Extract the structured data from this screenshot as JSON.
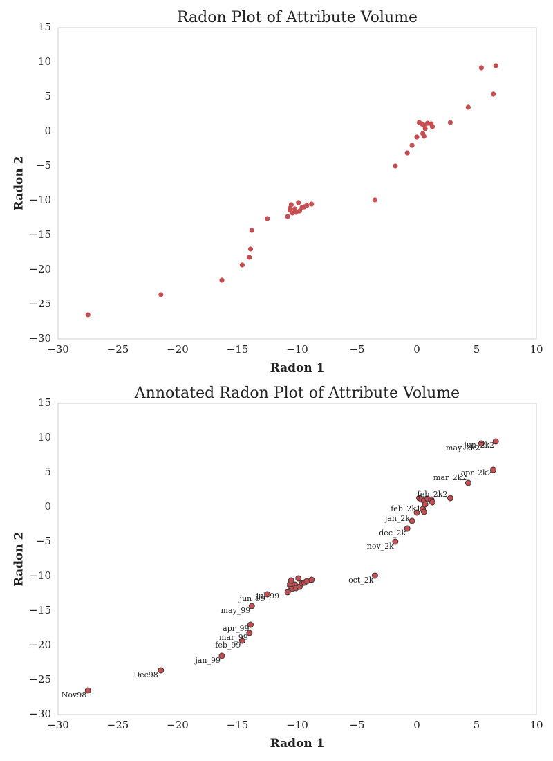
{
  "chart_data": [
    {
      "type": "scatter",
      "title": "Radon Plot of Attribute Volume",
      "xlabel": "Radon 1",
      "ylabel": "Radon 2",
      "xlim": [
        -30,
        10
      ],
      "ylim": [
        -30,
        15
      ],
      "xticks": [
        "−30",
        "−25",
        "−20",
        "−15",
        "−10",
        "−5",
        "0",
        "5",
        "10"
      ],
      "yticks": [
        "15",
        "10",
        "5",
        "0",
        "−5",
        "−10",
        "−15",
        "−20",
        "−25",
        "−30"
      ],
      "marker_color": "#c44e52",
      "grid": false,
      "points": [
        {
          "x": -27.5,
          "y": -26.5
        },
        {
          "x": -21.4,
          "y": -23.6
        },
        {
          "x": -16.3,
          "y": -21.5
        },
        {
          "x": -14.6,
          "y": -19.3
        },
        {
          "x": -14.0,
          "y": -18.2
        },
        {
          "x": -13.9,
          "y": -17.0
        },
        {
          "x": -13.8,
          "y": -14.3
        },
        {
          "x": -12.5,
          "y": -12.6
        },
        {
          "x": -10.8,
          "y": -12.3
        },
        {
          "x": -10.6,
          "y": -11.4
        },
        {
          "x": -10.6,
          "y": -11.1
        },
        {
          "x": -10.5,
          "y": -10.6
        },
        {
          "x": -10.4,
          "y": -11.8
        },
        {
          "x": -10.2,
          "y": -11.2
        },
        {
          "x": -10.1,
          "y": -11.7
        },
        {
          "x": -9.9,
          "y": -10.3
        },
        {
          "x": -9.8,
          "y": -11.5
        },
        {
          "x": -9.6,
          "y": -11.0
        },
        {
          "x": -9.4,
          "y": -10.9
        },
        {
          "x": -9.2,
          "y": -10.7
        },
        {
          "x": -8.8,
          "y": -10.5
        },
        {
          "x": -3.5,
          "y": -9.9
        },
        {
          "x": -1.8,
          "y": -5.0
        },
        {
          "x": -0.8,
          "y": -3.1
        },
        {
          "x": -0.4,
          "y": -2.0
        },
        {
          "x": 0.0,
          "y": -0.8
        },
        {
          "x": 0.2,
          "y": 1.3
        },
        {
          "x": 0.4,
          "y": 1.1
        },
        {
          "x": 0.5,
          "y": -0.3
        },
        {
          "x": 0.6,
          "y": -0.7
        },
        {
          "x": 0.6,
          "y": 0.9
        },
        {
          "x": 0.7,
          "y": 0.4
        },
        {
          "x": 0.9,
          "y": 1.2
        },
        {
          "x": 1.2,
          "y": 1.1
        },
        {
          "x": 1.3,
          "y": 0.7
        },
        {
          "x": 2.8,
          "y": 1.3
        },
        {
          "x": 4.3,
          "y": 3.5
        },
        {
          "x": 5.4,
          "y": 9.2
        },
        {
          "x": 6.4,
          "y": 5.4
        },
        {
          "x": 6.6,
          "y": 9.5
        }
      ]
    },
    {
      "type": "scatter",
      "title": "Annotated Radon Plot of Attribute Volume",
      "xlabel": "Radon 1",
      "ylabel": "Radon 2",
      "xlim": [
        -30,
        10
      ],
      "ylim": [
        -30,
        15
      ],
      "xticks": [
        "−30",
        "−25",
        "−20",
        "−15",
        "−10",
        "−5",
        "0",
        "5",
        "10"
      ],
      "yticks": [
        "15",
        "10",
        "5",
        "0",
        "−5",
        "−10",
        "−15",
        "−20",
        "−25",
        "−30"
      ],
      "marker_color": "#c44e52",
      "marker_edge_color": "#333333",
      "grid": false,
      "points": [
        {
          "x": -27.5,
          "y": -26.5,
          "label": "Nov98"
        },
        {
          "x": -21.4,
          "y": -23.6,
          "label": "Dec98"
        },
        {
          "x": -16.3,
          "y": -21.5,
          "label": "jan_99"
        },
        {
          "x": -14.6,
          "y": -19.3,
          "label": "feb_99"
        },
        {
          "x": -14.0,
          "y": -18.2,
          "label": "mar_99"
        },
        {
          "x": -13.9,
          "y": -17.0,
          "label": "apr_99"
        },
        {
          "x": -13.8,
          "y": -14.3,
          "label": "may_99"
        },
        {
          "x": -12.5,
          "y": -12.6,
          "label": "jun_99"
        },
        {
          "x": -10.8,
          "y": -12.3,
          "label": "jul_99"
        },
        {
          "x": -10.6,
          "y": -11.4,
          "label": ""
        },
        {
          "x": -10.6,
          "y": -11.1,
          "label": ""
        },
        {
          "x": -10.5,
          "y": -10.6,
          "label": ""
        },
        {
          "x": -10.4,
          "y": -11.8,
          "label": ""
        },
        {
          "x": -10.2,
          "y": -11.2,
          "label": ""
        },
        {
          "x": -10.1,
          "y": -11.7,
          "label": ""
        },
        {
          "x": -9.9,
          "y": -10.3,
          "label": ""
        },
        {
          "x": -9.8,
          "y": -11.5,
          "label": ""
        },
        {
          "x": -9.6,
          "y": -11.0,
          "label": ""
        },
        {
          "x": -9.4,
          "y": -10.9,
          "label": ""
        },
        {
          "x": -9.2,
          "y": -10.7,
          "label": ""
        },
        {
          "x": -8.8,
          "y": -10.5,
          "label": ""
        },
        {
          "x": -3.5,
          "y": -9.9,
          "label": "oct_2k"
        },
        {
          "x": -1.8,
          "y": -5.0,
          "label": "nov_2k"
        },
        {
          "x": -0.8,
          "y": -3.1,
          "label": "dec_2k"
        },
        {
          "x": -0.4,
          "y": -2.0,
          "label": "jan_2k"
        },
        {
          "x": 0.0,
          "y": -0.8,
          "label": "feb_2k1"
        },
        {
          "x": 0.2,
          "y": 1.3,
          "label": ""
        },
        {
          "x": 0.4,
          "y": 1.1,
          "label": ""
        },
        {
          "x": 0.5,
          "y": -0.3,
          "label": ""
        },
        {
          "x": 0.6,
          "y": -0.7,
          "label": ""
        },
        {
          "x": 0.6,
          "y": 0.9,
          "label": ""
        },
        {
          "x": 0.7,
          "y": 0.4,
          "label": ""
        },
        {
          "x": 0.9,
          "y": 1.2,
          "label": ""
        },
        {
          "x": 1.2,
          "y": 1.1,
          "label": ""
        },
        {
          "x": 1.3,
          "y": 0.7,
          "label": ""
        },
        {
          "x": 2.8,
          "y": 1.3,
          "label": "feb_2k2"
        },
        {
          "x": 4.3,
          "y": 3.5,
          "label": "mar_2k2"
        },
        {
          "x": 5.4,
          "y": 9.2,
          "label": "may_2k2"
        },
        {
          "x": 6.4,
          "y": 5.4,
          "label": "apr_2k2"
        },
        {
          "x": 6.6,
          "y": 9.5,
          "label": "jun_2k2"
        }
      ]
    }
  ]
}
